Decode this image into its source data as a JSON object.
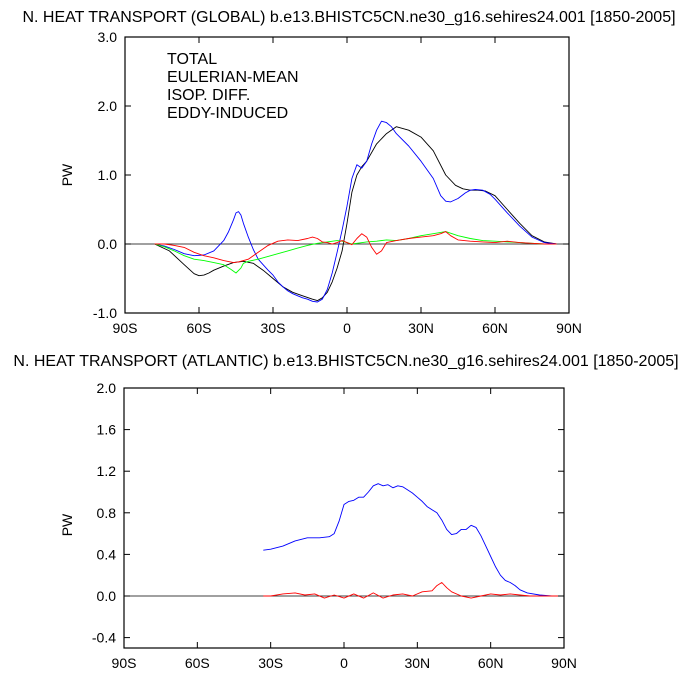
{
  "chart_data": [
    {
      "type": "line",
      "title": "N. HEAT TRANSPORT (GLOBAL) b.e13.BHISTC5CN.ne30_g16.sehires24.001 [1850-2005]",
      "xlabel": "",
      "ylabel": "PW",
      "xlim": [
        -90,
        90
      ],
      "ylim": [
        -1.0,
        3.0
      ],
      "x_ticks": [
        -90,
        -60,
        -30,
        0,
        30,
        60,
        90
      ],
      "x_tick_labels": [
        "90S",
        "60S",
        "30S",
        "0",
        "30N",
        "60N",
        "90N"
      ],
      "y_ticks": [
        -1.0,
        0.0,
        1.0,
        2.0,
        3.0
      ],
      "y_tick_labels": [
        "-1.0",
        "0.0",
        "1.0",
        "2.0",
        "3.0"
      ],
      "zero_line": true,
      "legend_position": "top-left",
      "series": [
        {
          "name": "TOTAL",
          "color": "#000000",
          "x": [
            -78,
            -72,
            -66,
            -62,
            -60,
            -58,
            -56,
            -54,
            -50,
            -46,
            -42,
            -38,
            -34,
            -30,
            -26,
            -22,
            -18,
            -14,
            -12,
            -10,
            -8,
            -6,
            -4,
            -2,
            0,
            2,
            4,
            6,
            8,
            12,
            16,
            20,
            25,
            30,
            35,
            40,
            44,
            47,
            50,
            53,
            56,
            60,
            65,
            70,
            75,
            80,
            85
          ],
          "y": [
            0.0,
            -0.1,
            -0.3,
            -0.43,
            -0.46,
            -0.45,
            -0.42,
            -0.38,
            -0.32,
            -0.27,
            -0.25,
            -0.28,
            -0.38,
            -0.5,
            -0.62,
            -0.7,
            -0.75,
            -0.8,
            -0.82,
            -0.78,
            -0.7,
            -0.55,
            -0.35,
            -0.1,
            0.3,
            0.75,
            1.0,
            1.12,
            1.2,
            1.45,
            1.6,
            1.7,
            1.65,
            1.55,
            1.35,
            1.0,
            0.85,
            0.8,
            0.78,
            0.78,
            0.77,
            0.7,
            0.5,
            0.3,
            0.12,
            0.03,
            0.0
          ]
        },
        {
          "name": "EULERIAN-MEAN",
          "color": "#0000ff",
          "x": [
            -78,
            -74,
            -70,
            -66,
            -62,
            -58,
            -54,
            -50,
            -48,
            -46,
            -45,
            -44,
            -43,
            -42,
            -40,
            -38,
            -36,
            -34,
            -32,
            -30,
            -28,
            -26,
            -24,
            -22,
            -20,
            -18,
            -16,
            -14,
            -12,
            -10,
            -8,
            -6,
            -4,
            -2,
            0,
            2,
            4,
            6,
            8,
            10,
            12,
            14,
            16,
            18,
            20,
            25,
            30,
            35,
            38,
            40,
            42,
            45,
            48,
            50,
            52,
            55,
            58,
            60,
            65,
            70,
            75,
            80,
            85
          ],
          "y": [
            0.0,
            -0.03,
            -0.08,
            -0.14,
            -0.17,
            -0.16,
            -0.1,
            0.05,
            0.18,
            0.35,
            0.45,
            0.47,
            0.42,
            0.3,
            0.1,
            -0.08,
            -0.22,
            -0.3,
            -0.38,
            -0.45,
            -0.55,
            -0.62,
            -0.68,
            -0.72,
            -0.75,
            -0.78,
            -0.8,
            -0.83,
            -0.84,
            -0.8,
            -0.66,
            -0.42,
            -0.12,
            0.2,
            0.55,
            0.95,
            1.15,
            1.1,
            1.2,
            1.45,
            1.65,
            1.78,
            1.76,
            1.7,
            1.6,
            1.42,
            1.2,
            0.95,
            0.7,
            0.62,
            0.61,
            0.66,
            0.74,
            0.78,
            0.79,
            0.78,
            0.72,
            0.65,
            0.45,
            0.26,
            0.1,
            0.02,
            0.0
          ]
        },
        {
          "name": "ISOP. DIFF.",
          "color": "#00ff00",
          "x": [
            -78,
            -74,
            -70,
            -66,
            -62,
            -58,
            -54,
            -50,
            -47,
            -45,
            -43,
            -42,
            -40,
            -36,
            -32,
            -28,
            -24,
            -20,
            -16,
            -12,
            -8,
            -4,
            -2,
            0,
            2,
            4,
            8,
            12,
            16,
            20,
            25,
            30,
            35,
            40,
            45,
            50,
            55,
            60,
            65,
            70,
            75,
            80,
            85
          ],
          "y": [
            0.0,
            -0.04,
            -0.1,
            -0.17,
            -0.22,
            -0.24,
            -0.27,
            -0.3,
            -0.37,
            -0.42,
            -0.35,
            -0.28,
            -0.25,
            -0.22,
            -0.18,
            -0.14,
            -0.1,
            -0.06,
            -0.02,
            0.01,
            0.03,
            0.05,
            0.04,
            0.02,
            0.0,
            0.01,
            0.03,
            0.04,
            0.06,
            0.05,
            0.08,
            0.12,
            0.15,
            0.18,
            0.12,
            0.08,
            0.05,
            0.04,
            0.03,
            0.02,
            0.01,
            0.0,
            0.0
          ]
        },
        {
          "name": "EDDY-INDUCED",
          "color": "#ff0000",
          "x": [
            -78,
            -74,
            -70,
            -66,
            -62,
            -58,
            -54,
            -50,
            -46,
            -44,
            -40,
            -36,
            -32,
            -28,
            -24,
            -20,
            -16,
            -14,
            -12,
            -10,
            -8,
            -6,
            -4,
            -2,
            0,
            2,
            4,
            6,
            8,
            10,
            12,
            14,
            16,
            20,
            25,
            30,
            35,
            38,
            40,
            42,
            45,
            50,
            55,
            60,
            65,
            70,
            75,
            80,
            85
          ],
          "y": [
            0.0,
            0.0,
            -0.02,
            -0.05,
            -0.12,
            -0.17,
            -0.2,
            -0.24,
            -0.27,
            -0.26,
            -0.22,
            -0.12,
            -0.02,
            0.04,
            0.06,
            0.05,
            0.08,
            0.1,
            0.08,
            0.03,
            0.02,
            0.0,
            0.02,
            0.05,
            0.02,
            -0.01,
            0.08,
            0.15,
            0.1,
            -0.05,
            -0.15,
            -0.1,
            0.02,
            0.05,
            0.08,
            0.1,
            0.12,
            0.15,
            0.18,
            0.12,
            0.06,
            0.04,
            0.03,
            0.02,
            0.04,
            0.02,
            0.01,
            0.0,
            0.0
          ]
        }
      ]
    },
    {
      "type": "line",
      "title": "N. HEAT TRANSPORT (ATLANTIC) b.e13.BHISTC5CN.ne30_g16.sehires24.001 [1850-2005]",
      "xlabel": "",
      "ylabel": "PW",
      "xlim": [
        -90,
        90
      ],
      "ylim": [
        -0.5,
        2.0
      ],
      "x_ticks": [
        -90,
        -60,
        -30,
        0,
        30,
        60,
        90
      ],
      "x_tick_labels": [
        "90S",
        "60S",
        "30S",
        "0",
        "30N",
        "60N",
        "90N"
      ],
      "y_ticks": [
        -0.4,
        0.0,
        0.4,
        0.8,
        1.2,
        1.6,
        2.0
      ],
      "y_tick_labels": [
        "-0.4",
        "0.0",
        "0.4",
        "0.8",
        "1.2",
        "1.6",
        "2.0"
      ],
      "zero_line": true,
      "series": [
        {
          "color": "#0000ff",
          "x": [
            -33,
            -30,
            -25,
            -20,
            -15,
            -10,
            -6,
            -4,
            -2,
            0,
            2,
            4,
            6,
            8,
            10,
            12,
            14,
            16,
            18,
            20,
            22,
            24,
            26,
            28,
            30,
            32,
            34,
            36,
            38,
            40,
            42,
            44,
            46,
            48,
            50,
            52,
            54,
            56,
            58,
            60,
            62,
            64,
            66,
            68,
            70,
            72,
            75,
            80,
            85,
            88
          ],
          "y": [
            0.44,
            0.45,
            0.48,
            0.53,
            0.56,
            0.56,
            0.57,
            0.6,
            0.72,
            0.88,
            0.91,
            0.92,
            0.95,
            0.95,
            1.0,
            1.06,
            1.08,
            1.06,
            1.07,
            1.04,
            1.06,
            1.05,
            1.02,
            0.99,
            0.95,
            0.91,
            0.86,
            0.83,
            0.8,
            0.73,
            0.64,
            0.59,
            0.6,
            0.64,
            0.64,
            0.68,
            0.66,
            0.58,
            0.48,
            0.38,
            0.28,
            0.2,
            0.15,
            0.13,
            0.1,
            0.06,
            0.03,
            0.01,
            0.0,
            0.0
          ]
        },
        {
          "color": "#ff0000",
          "x": [
            -33,
            -30,
            -25,
            -20,
            -16,
            -12,
            -8,
            -4,
            0,
            4,
            8,
            12,
            16,
            20,
            24,
            28,
            32,
            36,
            38,
            40,
            42,
            44,
            48,
            52,
            56,
            60,
            64,
            68,
            72,
            76,
            80,
            85,
            88
          ],
          "y": [
            0.0,
            0.0,
            0.02,
            0.03,
            0.01,
            0.02,
            -0.02,
            0.01,
            -0.02,
            0.02,
            -0.02,
            0.03,
            -0.02,
            0.01,
            0.02,
            0.0,
            0.04,
            0.05,
            0.1,
            0.13,
            0.08,
            0.04,
            0.0,
            -0.02,
            0.0,
            0.02,
            0.01,
            0.02,
            0.01,
            0.0,
            0.0,
            0.0,
            0.0
          ]
        }
      ]
    }
  ]
}
